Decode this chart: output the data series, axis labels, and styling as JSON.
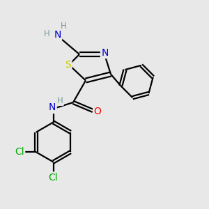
{
  "background_color": "#e8e8e8",
  "bond_color": "#000000",
  "atom_colors": {
    "N": "#0000cd",
    "S": "#cccc00",
    "O": "#ff0000",
    "Cl": "#00aa00",
    "C": "#000000",
    "H": "#7a9a9a"
  },
  "lw": 1.6,
  "fs": 10,
  "fs_small": 8.5
}
